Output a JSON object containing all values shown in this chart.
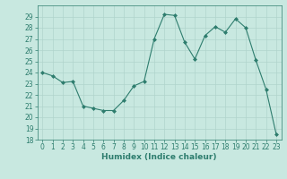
{
  "x": [
    0,
    1,
    2,
    3,
    4,
    5,
    6,
    7,
    8,
    9,
    10,
    11,
    12,
    13,
    14,
    15,
    16,
    17,
    18,
    19,
    20,
    21,
    22,
    23
  ],
  "y": [
    24.0,
    23.7,
    23.1,
    23.2,
    21.0,
    20.8,
    20.6,
    20.6,
    21.5,
    22.8,
    23.2,
    27.0,
    29.2,
    29.1,
    26.7,
    25.2,
    27.3,
    28.1,
    27.6,
    28.8,
    28.0,
    25.1,
    22.5,
    18.5
  ],
  "xlabel": "Humidex (Indice chaleur)",
  "ylim": [
    18,
    30
  ],
  "xlim": [
    -0.5,
    23.5
  ],
  "yticks": [
    18,
    19,
    20,
    21,
    22,
    23,
    24,
    25,
    26,
    27,
    28,
    29
  ],
  "xticks": [
    0,
    1,
    2,
    3,
    4,
    5,
    6,
    7,
    8,
    9,
    10,
    11,
    12,
    13,
    14,
    15,
    16,
    17,
    18,
    19,
    20,
    21,
    22,
    23
  ],
  "line_color": "#2e7d6e",
  "marker": "D",
  "marker_size": 2.0,
  "line_width": 0.8,
  "bg_color": "#c8e8e0",
  "grid_color": "#b0d4cc",
  "label_fontsize": 6.5,
  "tick_fontsize": 5.5
}
